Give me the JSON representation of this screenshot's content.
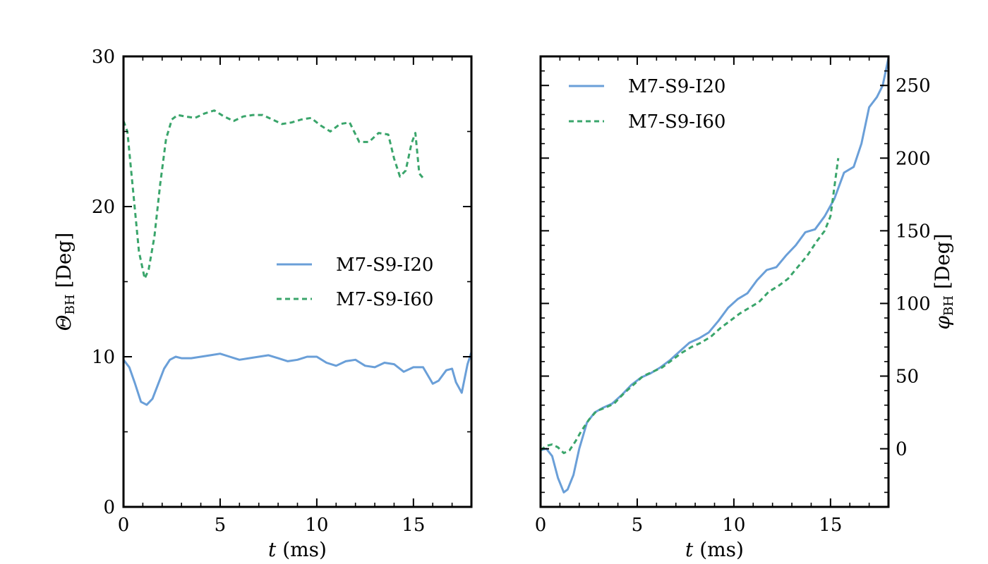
{
  "chart_data": [
    {
      "type": "line",
      "xlabel": "t (ms)",
      "ylabel": "Θ_BH [Deg]",
      "xlim": [
        0,
        18
      ],
      "ylim": [
        0,
        30
      ],
      "xticks": [
        0,
        5,
        10,
        15
      ],
      "yticks": [
        0,
        10,
        20,
        30
      ],
      "y_axis_side": "left",
      "legend_position": "center-right",
      "grid": false,
      "series": [
        {
          "name": "M7-S9-I20",
          "style": "solid",
          "color": "#6a9fd8",
          "x": [
            0,
            0.3,
            0.6,
            0.9,
            1.2,
            1.5,
            1.8,
            2.1,
            2.4,
            2.7,
            3,
            3.5,
            4,
            4.5,
            5,
            5.5,
            6,
            6.5,
            7,
            7.5,
            8,
            8.5,
            9,
            9.5,
            10,
            10.5,
            11,
            11.5,
            12,
            12.5,
            13,
            13.5,
            14,
            14.5,
            15,
            15.5,
            16,
            16.3,
            16.7,
            17,
            17.2,
            17.5,
            17.8,
            18
          ],
          "y": [
            9.8,
            9.3,
            8.2,
            7.0,
            6.8,
            7.2,
            8.2,
            9.2,
            9.8,
            10.0,
            9.9,
            9.9,
            10.0,
            10.1,
            10.2,
            10.0,
            9.8,
            9.9,
            10.0,
            10.1,
            9.9,
            9.7,
            9.8,
            10.0,
            10.0,
            9.6,
            9.4,
            9.7,
            9.8,
            9.4,
            9.3,
            9.6,
            9.5,
            9.0,
            9.3,
            9.3,
            8.2,
            8.4,
            9.1,
            9.2,
            8.3,
            7.6,
            9.5,
            10.3
          ]
        },
        {
          "name": "M7-S9-I60",
          "style": "dashed",
          "color": "#3aa56b",
          "x": [
            0,
            0.2,
            0.5,
            0.8,
            1.1,
            1.3,
            1.6,
            1.9,
            2.2,
            2.5,
            2.8,
            3.2,
            3.7,
            4.2,
            4.7,
            5.2,
            5.7,
            6.2,
            6.7,
            7.2,
            7.7,
            8.2,
            8.7,
            9.2,
            9.7,
            10.2,
            10.7,
            11.2,
            11.7,
            12.2,
            12.7,
            13.2,
            13.7,
            14.0,
            14.3,
            14.6,
            14.9,
            15.1,
            15.3,
            15.5
          ],
          "y": [
            25.7,
            25.0,
            21.0,
            17.0,
            15.2,
            15.8,
            18.0,
            21.5,
            24.5,
            25.8,
            26.1,
            26.0,
            25.9,
            26.2,
            26.4,
            26.0,
            25.7,
            26.0,
            26.1,
            26.1,
            25.8,
            25.5,
            25.6,
            25.8,
            25.9,
            25.4,
            25.0,
            25.5,
            25.6,
            24.3,
            24.3,
            24.9,
            24.8,
            23.2,
            22.0,
            22.4,
            24.2,
            24.9,
            22.2,
            21.9
          ]
        }
      ]
    },
    {
      "type": "line",
      "xlabel": "t (ms)",
      "ylabel": "φ_BH [Deg]",
      "xlim": [
        0,
        18
      ],
      "ylim": [
        -40,
        270
      ],
      "xticks": [
        0,
        5,
        10,
        15
      ],
      "yticks": [
        0,
        50,
        100,
        150,
        200,
        250
      ],
      "y_axis_side": "right",
      "legend_position": "top-left",
      "grid": false,
      "series": [
        {
          "name": "M7-S9-I20",
          "style": "solid",
          "color": "#6a9fd8",
          "x": [
            0,
            0.3,
            0.6,
            0.9,
            1.2,
            1.4,
            1.7,
            2.0,
            2.4,
            2.8,
            3.2,
            3.7,
            4.2,
            4.7,
            5.2,
            5.7,
            6.2,
            6.7,
            7.2,
            7.7,
            8.2,
            8.7,
            9.2,
            9.7,
            10.2,
            10.7,
            11.2,
            11.7,
            12.2,
            12.7,
            13.2,
            13.7,
            14.2,
            14.7,
            15.2,
            15.7,
            16.2,
            16.6,
            17.0,
            17.4,
            17.7,
            18.0
          ],
          "y": [
            -1,
            0,
            -5,
            -20,
            -30,
            -28,
            -18,
            0,
            18,
            25,
            28,
            31,
            37,
            44,
            49,
            52,
            56,
            61,
            67,
            73,
            76,
            80,
            88,
            97,
            103,
            107,
            116,
            123,
            125,
            133,
            140,
            149,
            151,
            160,
            172,
            190,
            194,
            210,
            235,
            242,
            250,
            269
          ]
        },
        {
          "name": "M7-S9-I60",
          "style": "dashed",
          "color": "#3aa56b",
          "x": [
            0,
            0.3,
            0.6,
            0.9,
            1.2,
            1.5,
            1.8,
            2.1,
            2.5,
            2.9,
            3.3,
            3.8,
            4.3,
            4.8,
            5.3,
            5.8,
            6.3,
            6.8,
            7.3,
            7.8,
            8.3,
            8.8,
            9.3,
            9.8,
            10.3,
            10.8,
            11.3,
            11.8,
            12.3,
            12.8,
            13.3,
            13.8,
            14.3,
            14.7,
            15.0,
            15.2,
            15.4
          ],
          "y": [
            -1,
            2,
            3,
            1,
            -3,
            -1,
            5,
            12,
            20,
            26,
            28,
            31,
            38,
            44,
            50,
            53,
            56,
            61,
            66,
            70,
            73,
            77,
            83,
            88,
            93,
            97,
            101,
            108,
            112,
            117,
            125,
            133,
            143,
            150,
            160,
            180,
            200
          ]
        }
      ]
    }
  ]
}
